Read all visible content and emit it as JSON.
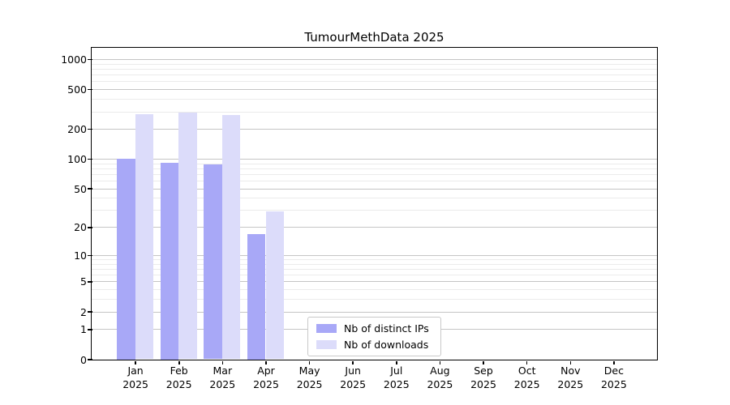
{
  "title": "TumourMethData 2025",
  "colors": {
    "bar_distinct_ips": "#a8a8f7",
    "bar_downloads": "#dcdcfa",
    "grid_major": "#c5c5c5",
    "grid_minor": "#ebebeb",
    "spine": "#000000",
    "legend_border": "#c9c9c9",
    "text": "#000000"
  },
  "legend": {
    "items": [
      {
        "label": "Nb of distinct IPs",
        "color": "#a8a8f7"
      },
      {
        "label": "Nb of downloads",
        "color": "#dcdcfa"
      }
    ]
  },
  "chart_data": {
    "type": "bar",
    "title": "TumourMethData 2025",
    "year_label": "2025",
    "categories": [
      "Jan",
      "Feb",
      "Mar",
      "Apr",
      "May",
      "Jun",
      "Jul",
      "Aug",
      "Sep",
      "Oct",
      "Nov",
      "Dec"
    ],
    "series": [
      {
        "name": "Nb of distinct IPs",
        "color": "#a8a8f7",
        "values": [
          100,
          91,
          87,
          17,
          0,
          0,
          0,
          0,
          0,
          0,
          0,
          0
        ]
      },
      {
        "name": "Nb of downloads",
        "color": "#dcdcfa",
        "values": [
          279,
          293,
          275,
          29,
          0,
          0,
          0,
          0,
          0,
          0,
          0,
          0
        ]
      }
    ],
    "xlabel": "",
    "ylabel": "",
    "yscale": "log1p",
    "ylim": [
      0,
      1300
    ],
    "yticks": [
      0,
      1,
      2,
      5,
      10,
      20,
      50,
      100,
      200,
      500,
      1000
    ],
    "yticks_minor": [
      3,
      4,
      6,
      7,
      8,
      9,
      30,
      40,
      60,
      70,
      80,
      90,
      300,
      400,
      600,
      700,
      800,
      900
    ],
    "grid": true,
    "legend_position": "inside lower-center"
  }
}
